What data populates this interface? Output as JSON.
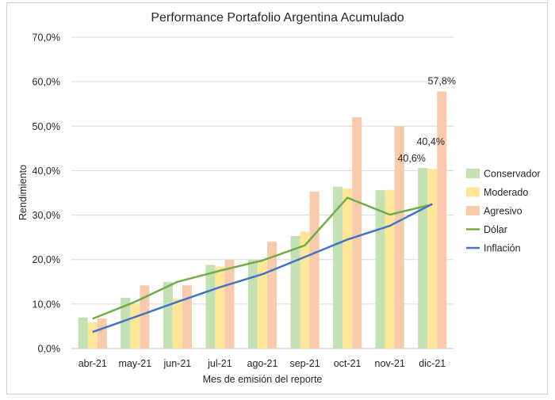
{
  "chart_data": {
    "type": "bar",
    "title": "Performance Portafolio Argentina Acumulado",
    "xlabel": "Mes de emisión del reporte",
    "ylabel": "Rendimiento",
    "ylim": [
      0,
      70
    ],
    "yticks": [
      "0,0%",
      "10,0%",
      "20,0%",
      "30,0%",
      "40,0%",
      "50,0%",
      "60,0%",
      "70,0%"
    ],
    "grid": true,
    "legend": "right",
    "categories": [
      "abr-21",
      "may-21",
      "jun-21",
      "jul-21",
      "ago-21",
      "sep-21",
      "oct-21",
      "nov-21",
      "dic-21"
    ],
    "series": [
      {
        "name": "Conservador",
        "kind": "bar",
        "color": "#c5e0b4",
        "values": [
          7.0,
          11.4,
          15.0,
          18.8,
          20.0,
          25.3,
          36.4,
          35.6,
          40.6
        ]
      },
      {
        "name": "Moderado",
        "kind": "bar",
        "color": "#ffe699",
        "values": [
          5.9,
          10.0,
          11.2,
          18.4,
          19.7,
          26.3,
          36.0,
          35.7,
          40.4
        ]
      },
      {
        "name": "Agresivo",
        "kind": "bar",
        "color": "#f8cbad",
        "values": [
          6.8,
          14.2,
          14.2,
          20.0,
          24.0,
          35.3,
          52.0,
          50.0,
          57.8
        ]
      },
      {
        "name": "Dólar",
        "kind": "line",
        "color": "#70ad47",
        "values": [
          6.7,
          10.5,
          15.0,
          17.5,
          19.8,
          23.2,
          33.9,
          30.1,
          32.4
        ]
      },
      {
        "name": "Inflación",
        "kind": "line",
        "color": "#4472c4",
        "values": [
          3.7,
          7.1,
          10.5,
          13.8,
          16.7,
          20.6,
          24.5,
          27.6,
          32.5
        ]
      }
    ],
    "annotations": [
      {
        "series": "Conservador",
        "category": "dic-21",
        "text": "40,6%"
      },
      {
        "series": "Moderado",
        "category": "dic-21",
        "text": "40,4%"
      },
      {
        "series": "Agresivo",
        "category": "dic-21",
        "text": "57,8%"
      }
    ]
  }
}
